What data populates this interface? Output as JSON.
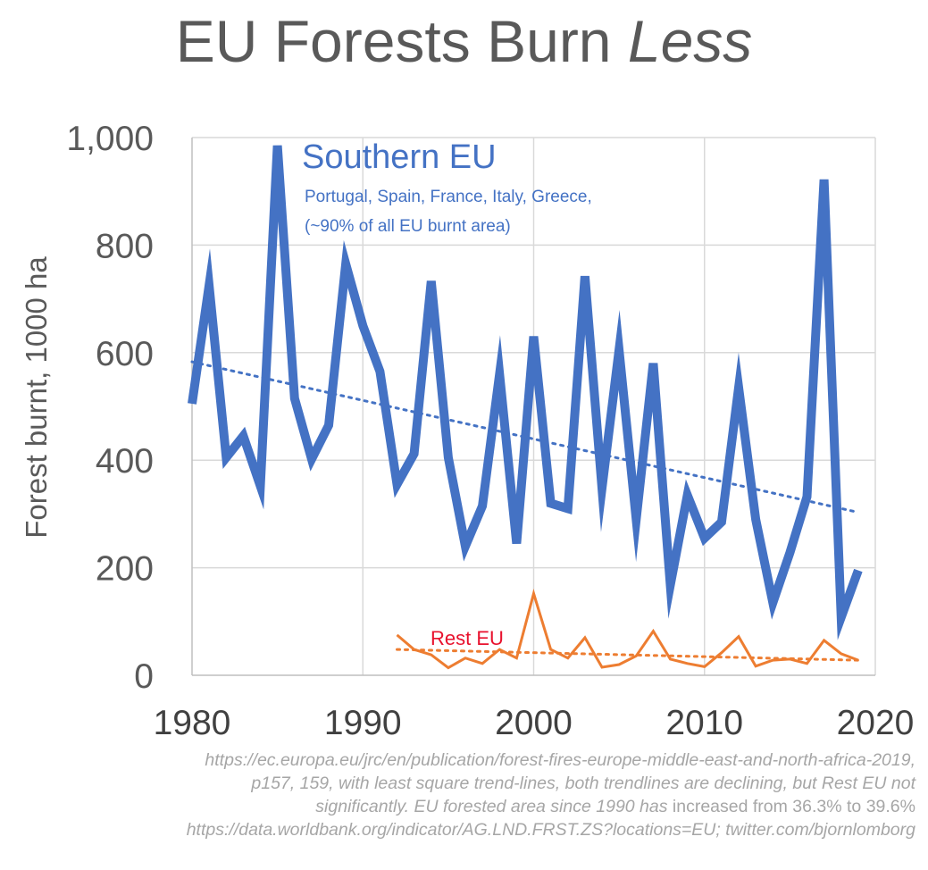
{
  "title": {
    "main": "EU Forests Burn",
    "emphasis": "Less"
  },
  "chart_data": {
    "type": "line",
    "ylabel": "Forest burnt, 1000 ha",
    "xlabel": "",
    "xlim": [
      1980,
      2020
    ],
    "ylim": [
      0,
      1000
    ],
    "x_ticks": [
      1980,
      1990,
      2000,
      2010,
      2020
    ],
    "y_ticks": [
      0,
      200,
      400,
      600,
      800,
      1000
    ],
    "y_tick_labels": [
      "0",
      "200",
      "400",
      "600",
      "800",
      "1,000"
    ],
    "grid": true,
    "series": [
      {
        "name": "Southern EU",
        "color": "#4472c4",
        "x": [
          1980,
          1981,
          1982,
          1983,
          1984,
          1985,
          1986,
          1987,
          1988,
          1989,
          1990,
          1991,
          1992,
          1993,
          1994,
          1995,
          1996,
          1997,
          1998,
          1999,
          2000,
          2001,
          2002,
          2003,
          2004,
          2005,
          2006,
          2007,
          2008,
          2009,
          2010,
          2011,
          2012,
          2013,
          2014,
          2015,
          2016,
          2017,
          2018,
          2019
        ],
        "values": [
          505,
          725,
          405,
          445,
          352,
          985,
          515,
          402,
          465,
          765,
          650,
          565,
          355,
          412,
          733,
          405,
          240,
          315,
          560,
          245,
          630,
          320,
          310,
          742,
          348,
          605,
          290,
          580,
          168,
          335,
          255,
          285,
          535,
          290,
          135,
          228,
          332,
          922,
          108,
          195
        ]
      },
      {
        "name": "Rest EU",
        "color": "#ed7d31",
        "x": [
          1992,
          1993,
          1994,
          1995,
          1996,
          1997,
          1998,
          1999,
          2000,
          2001,
          2002,
          2003,
          2004,
          2005,
          2006,
          2007,
          2008,
          2009,
          2010,
          2011,
          2012,
          2013,
          2014,
          2015,
          2016,
          2017,
          2018,
          2019
        ],
        "values": [
          75,
          48,
          38,
          14,
          32,
          22,
          48,
          32,
          152,
          48,
          32,
          70,
          15,
          20,
          36,
          82,
          30,
          22,
          16,
          42,
          72,
          17,
          28,
          30,
          22,
          65,
          40,
          28
        ]
      }
    ],
    "trendlines": [
      {
        "series": "Southern EU",
        "x": [
          1980,
          2019
        ],
        "values": [
          583,
          303
        ]
      },
      {
        "series": "Rest EU",
        "x": [
          1992,
          2019
        ],
        "values": [
          48,
          28
        ]
      }
    ],
    "annotations": {
      "southern_label": "Southern EU",
      "southern_sub1": "Portugal, Spain, France, Italy, Greece,",
      "southern_sub2": "(~90% of all EU burnt area)",
      "rest_label": "Rest EU"
    }
  },
  "source": {
    "line1": "https://ec.europa.eu/jrc/en/publication/forest-fires-europe-middle-east-and-north-africa-2019,",
    "line2": "p157, 159, with least square trend-lines, both trendlines are declining, but Rest EU not",
    "line3_italic": "significantly. EU forested area since 1990 has",
    "line3_plain": " increased from 36.3% to 39.6%",
    "line4": "https://data.worldbank.org/indicator/AG.LND.FRST.ZS?locations=EU; twitter.com/bjornlomborg"
  }
}
